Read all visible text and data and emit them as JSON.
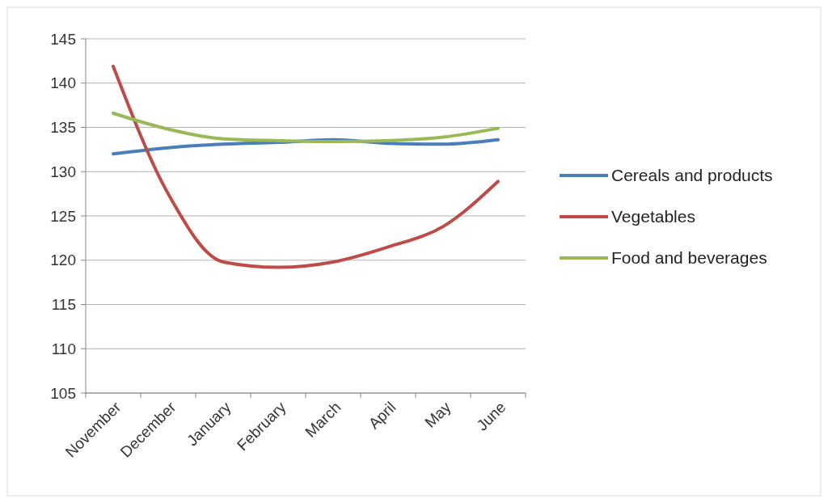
{
  "chart_data": {
    "type": "line",
    "categories": [
      "November",
      "December",
      "January",
      "February",
      "March",
      "April",
      "May",
      "June"
    ],
    "series": [
      {
        "name": "Cereals and products",
        "color": "#4a7ebb",
        "values": [
          132.0,
          132.7,
          133.1,
          133.3,
          133.6,
          133.2,
          133.1,
          133.6
        ]
      },
      {
        "name": "Vegetables",
        "color": "#be4b48",
        "values": [
          141.9,
          127.5,
          119.8,
          119.2,
          119.8,
          121.5,
          123.8,
          128.9
        ]
      },
      {
        "name": "Food and beverages",
        "color": "#98b954",
        "values": [
          136.6,
          134.8,
          133.7,
          133.5,
          133.4,
          133.5,
          133.9,
          134.9
        ]
      }
    ],
    "ylim": [
      105,
      145
    ],
    "yticks": [
      105,
      110,
      115,
      120,
      125,
      130,
      135,
      140,
      145
    ],
    "grid": "y",
    "legend": "right",
    "marker": "none",
    "line_style": "solid"
  }
}
